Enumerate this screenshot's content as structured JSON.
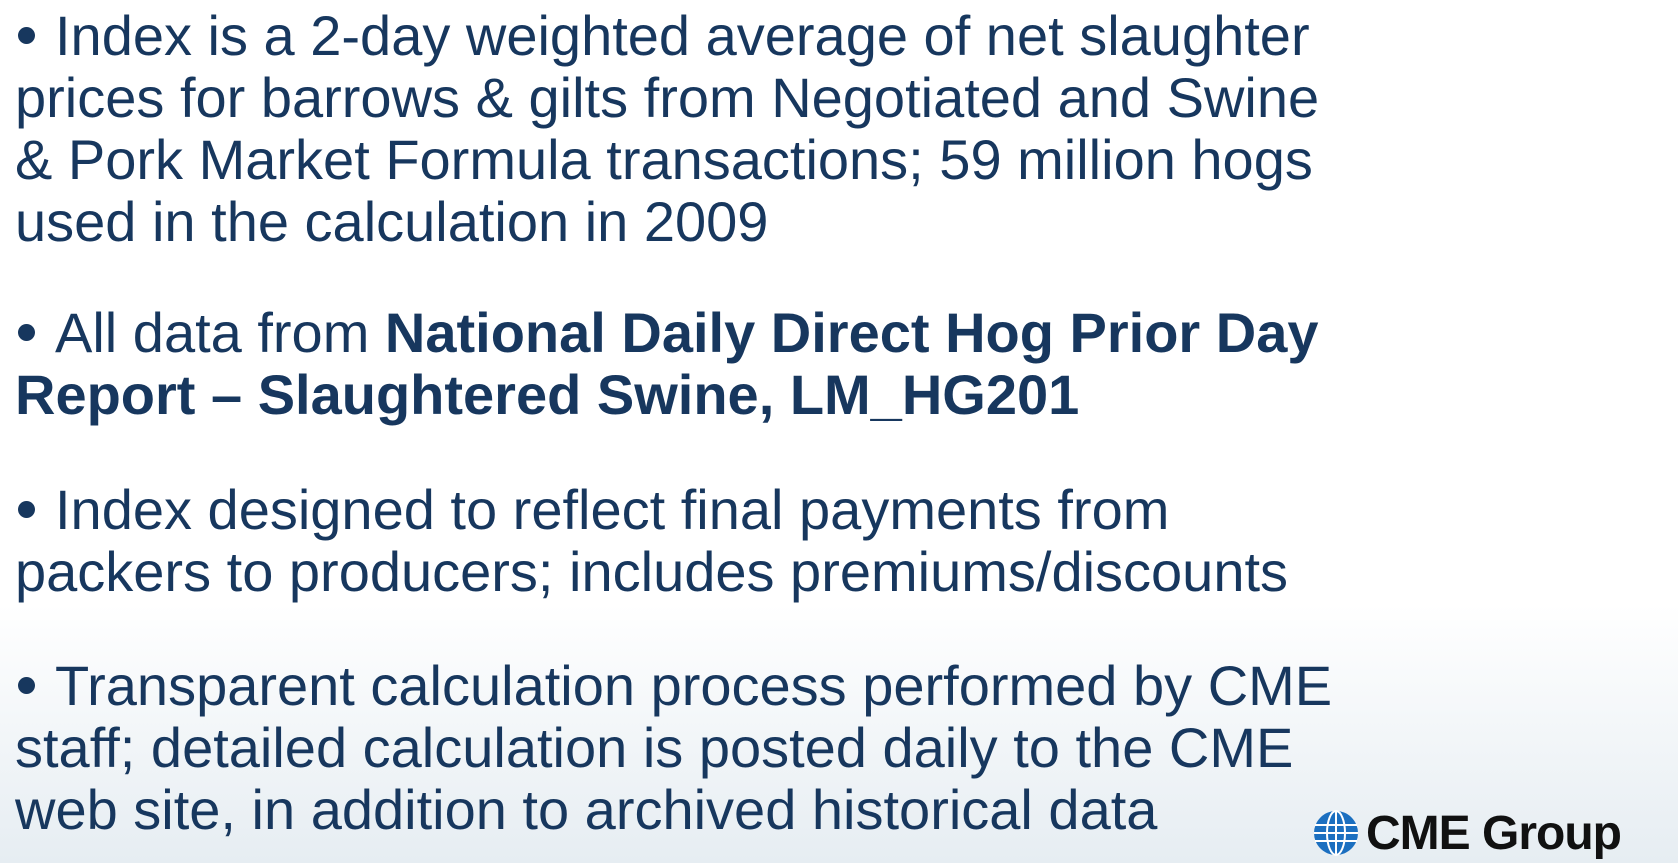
{
  "bullets": [
    {
      "lines": [
        "Index is a 2-day weighted average of net slaughter",
        "prices for barrows & gilts from Negotiated and Swine",
        "& Pork Market Formula transactions; 59 million hogs",
        "used in the calculation in 2009"
      ]
    },
    {
      "lead": "All data from ",
      "bold_lines": [
        "National Daily Direct Hog Prior Day",
        "Report – Slaughtered Swine, LM_HG201"
      ]
    },
    {
      "lines": [
        "Index designed to reflect final payments from",
        "packers to producers; includes premiums/discounts"
      ]
    },
    {
      "lines": [
        "Transparent calculation process performed by CME",
        "staff; detailed calculation is posted daily to the CME",
        "web site, in addition to archived historical data"
      ]
    }
  ],
  "logo": {
    "text": "CME Group"
  }
}
